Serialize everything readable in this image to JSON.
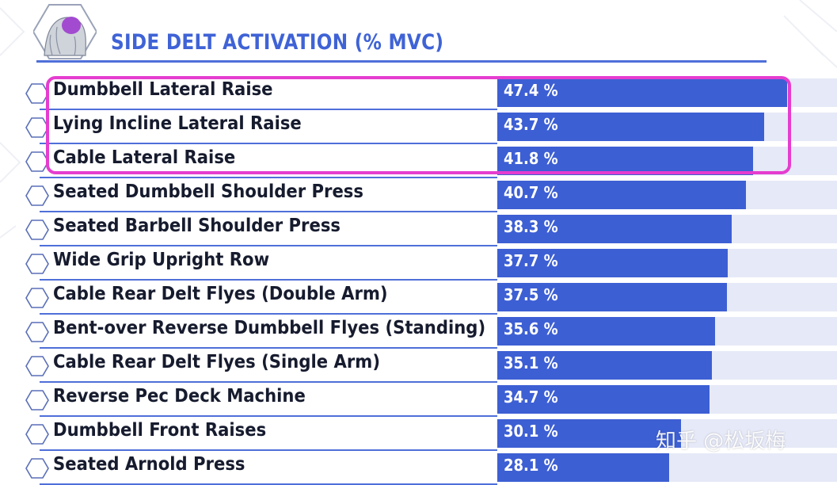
{
  "chart_data": {
    "type": "bar",
    "orientation": "horizontal",
    "title": "SIDE DELT ACTIVATION (% MVC)",
    "xlabel": "",
    "ylabel": "",
    "xlim": [
      0,
      50
    ],
    "unit": "%",
    "categories": [
      "Dumbbell Lateral Raise",
      "Lying Incline Lateral Raise",
      "Cable Lateral Raise",
      "Seated Dumbbell Shoulder Press",
      "Seated Barbell Shoulder Press",
      "Wide Grip Upright Row",
      "Cable Rear Delt Flyes (Double Arm)",
      "Bent-over Reverse Dumbbell Flyes (Standing)",
      "Cable Rear Delt Flyes (Single Arm)",
      "Reverse Pec Deck Machine",
      "Dumbbell Front Raises",
      "Seated Arnold Press"
    ],
    "values": [
      47.4,
      43.7,
      41.8,
      40.7,
      38.3,
      37.7,
      37.5,
      35.6,
      35.1,
      34.7,
      30.1,
      28.1
    ],
    "value_labels": [
      "47.4 %",
      "43.7 %",
      "41.8 %",
      "40.7 %",
      "38.3 %",
      "37.7 %",
      "37.5 %",
      "35.6 %",
      "35.1 %",
      "34.7 %",
      "30.1 %",
      "28.1 %"
    ],
    "highlighted_rows": [
      0,
      1,
      2
    ]
  },
  "watermark": "知乎 @松坂梅",
  "colors": {
    "bar": "#3d5fd4",
    "track": "#e6e9f7",
    "title": "#3f63d6",
    "highlight": "#e53dcf"
  },
  "icons": {
    "logo": "shoulder-muscle-icon",
    "row_marker": "hexagon-icon"
  }
}
